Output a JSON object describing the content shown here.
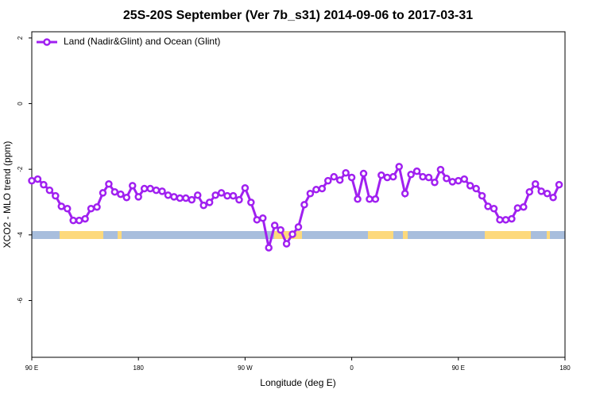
{
  "chart_data": {
    "type": "line",
    "title": "25S-20S September (Ver 7b_s31)   2014-09-06 to 2017-03-31",
    "x_label": "Longitude (deg E)",
    "y_label": "XCO2 - MLO trend (ppm)",
    "xlim": [
      90,
      540
    ],
    "ylim": [
      -7.73,
      2.19
    ],
    "xticks": [
      {
        "value": 90,
        "label": "90 E"
      },
      {
        "value": 180,
        "label": "180"
      },
      {
        "value": 270,
        "label": "90 W"
      },
      {
        "value": 360,
        "label": "0"
      },
      {
        "value": 450,
        "label": "90 E"
      },
      {
        "value": 540,
        "label": "180"
      }
    ],
    "yticks": [
      2,
      0,
      -2,
      -4,
      -6
    ],
    "legend": "top-left",
    "x": [
      90,
      95,
      100,
      105,
      110,
      115,
      120,
      125,
      130,
      135,
      140,
      145,
      150,
      155,
      160,
      165,
      170,
      175,
      180,
      185,
      190,
      195,
      200,
      205,
      210,
      215,
      220,
      225,
      230,
      235,
      240,
      245,
      250,
      255,
      260,
      265,
      270,
      275,
      280,
      285,
      290,
      295,
      300,
      305,
      310,
      315,
      320,
      325,
      330,
      335,
      340,
      345,
      350,
      355,
      360,
      365,
      370,
      375,
      380,
      385,
      390,
      395,
      400,
      405,
      410,
      415,
      420,
      425,
      430,
      435,
      440,
      445,
      450,
      455,
      460,
      465,
      470,
      475,
      480,
      485,
      490,
      495,
      500,
      505,
      510,
      515,
      520,
      525,
      530,
      535
    ],
    "series": [
      {
        "name": "Land (Nadir&Glint) and Ocean (Glint)",
        "color": "#a020f0",
        "values": [
          -2.35,
          -2.3,
          -2.47,
          -2.64,
          -2.81,
          -3.13,
          -3.2,
          -3.56,
          -3.56,
          -3.51,
          -3.2,
          -3.15,
          -2.72,
          -2.45,
          -2.69,
          -2.76,
          -2.86,
          -2.5,
          -2.84,
          -2.59,
          -2.59,
          -2.64,
          -2.67,
          -2.79,
          -2.84,
          -2.88,
          -2.88,
          -2.93,
          -2.79,
          -3.1,
          -3.01,
          -2.79,
          -2.72,
          -2.81,
          -2.81,
          -2.93,
          -2.57,
          -3.01,
          -3.54,
          -3.49,
          -4.39,
          -3.71,
          -3.85,
          -4.27,
          -3.98,
          -3.76,
          -3.08,
          -2.74,
          -2.62,
          -2.59,
          -2.35,
          -2.23,
          -2.33,
          -2.11,
          -2.25,
          -2.91,
          -2.13,
          -2.91,
          -2.91,
          -2.18,
          -2.25,
          -2.23,
          -1.92,
          -2.74,
          -2.16,
          -2.06,
          -2.23,
          -2.25,
          -2.4,
          -2.01,
          -2.28,
          -2.38,
          -2.35,
          -2.3,
          -2.5,
          -2.59,
          -2.81,
          -3.13,
          -3.2,
          -3.54,
          -3.54,
          -3.51,
          -3.18,
          -3.15,
          -2.69,
          -2.45,
          -2.67,
          -2.74,
          -2.86,
          -2.47
        ]
      }
    ]
  }
}
